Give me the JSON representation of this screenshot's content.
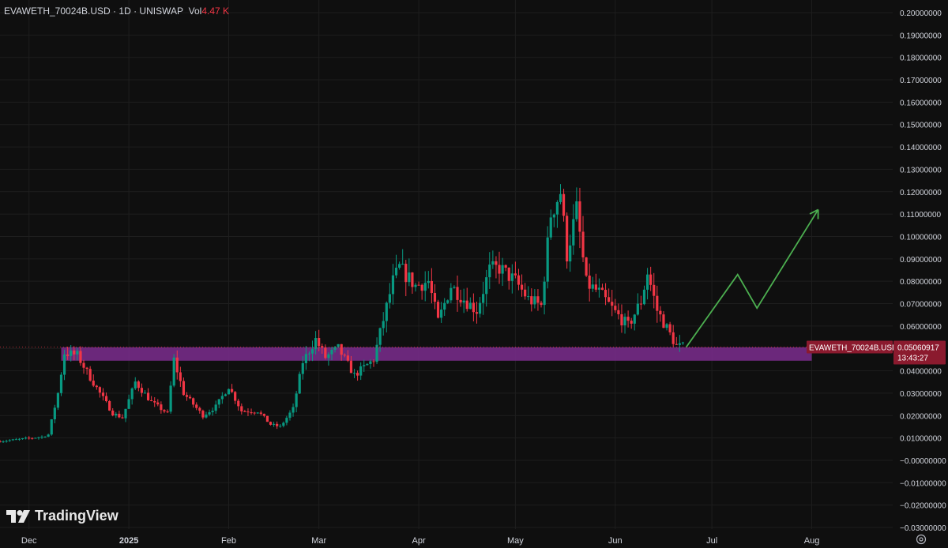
{
  "header": {
    "symbol": "EVAWETH_70024B.USD",
    "sep1": " · ",
    "interval": "1D",
    "sep2": " · ",
    "exchange": "UNISWAP",
    "vol_label": "Vol",
    "vol_value": "4.47 K"
  },
  "branding": {
    "name": "TradingView",
    "icon": "tradingview-logo-icon"
  },
  "settings_icon": "gear-icon",
  "price_tag": {
    "symbol": "EVAWETH_70024B.USD",
    "price": "0.05060917",
    "countdown": "13:43:27",
    "color": "#8b1a2e"
  },
  "colors": {
    "background": "#0f0f0f",
    "grid": "#1e1e1e",
    "up": "#089981",
    "down": "#f23645",
    "zone": "#7b2d8e",
    "projection": "#4caf50"
  },
  "chart_data": {
    "type": "candlestick",
    "title": "EVAWETH_70024B.USD · 1D · UNISWAP",
    "x_ticks": [
      "Dec",
      "2025",
      "Feb",
      "Mar",
      "Apr",
      "May",
      "Jun",
      "Jul",
      "Aug"
    ],
    "y_ticks": [
      "0.20000000",
      "0.19000000",
      "0.18000000",
      "0.17000000",
      "0.16000000",
      "0.15000000",
      "0.14000000",
      "0.13000000",
      "0.12000000",
      "0.11000000",
      "0.10000000",
      "0.09000000",
      "0.08000000",
      "0.07000000",
      "0.06000000",
      "0.05000000",
      "0.04000000",
      "0.03000000",
      "0.02000000",
      "0.01000000",
      "−0.00000000",
      "−0.01000000",
      "−0.02000000",
      "−0.03000000"
    ],
    "ylim": [
      -0.03,
      0.2
    ],
    "x_range": [
      "2024-11-22",
      "2025-08-20"
    ],
    "grid": true,
    "last_price": 0.05060917,
    "support_zone": {
      "from_date": "2024-12-11",
      "to_date": "2025-08-01",
      "low": 0.0445,
      "high": 0.0505
    },
    "projection_path": [
      {
        "date": "2025-06-23",
        "y": 0.0505
      },
      {
        "date": "2025-07-09",
        "y": 0.083
      },
      {
        "date": "2025-07-15",
        "y": 0.068
      },
      {
        "date": "2025-08-03",
        "y": 0.112
      }
    ],
    "anchors": [
      [
        "2024-11-22",
        0.0085
      ],
      [
        "2024-12-05",
        0.0105
      ],
      [
        "2024-12-07",
        0.0115
      ],
      [
        "2024-12-10",
        0.03
      ],
      [
        "2024-12-12",
        0.048
      ],
      [
        "2024-12-16",
        0.047
      ],
      [
        "2024-12-20",
        0.037
      ],
      [
        "2024-12-23",
        0.03
      ],
      [
        "2024-12-27",
        0.021
      ],
      [
        "2024-12-30",
        0.019
      ],
      [
        "2025-01-03",
        0.035
      ],
      [
        "2025-01-08",
        0.026
      ],
      [
        "2025-01-13",
        0.021
      ],
      [
        "2025-01-15",
        0.045
      ],
      [
        "2025-01-18",
        0.03
      ],
      [
        "2025-01-24",
        0.02
      ],
      [
        "2025-01-28",
        0.024
      ],
      [
        "2025-02-01",
        0.033
      ],
      [
        "2025-02-05",
        0.022
      ],
      [
        "2025-02-10",
        0.022
      ],
      [
        "2025-02-14",
        0.016
      ],
      [
        "2025-02-17",
        0.015
      ],
      [
        "2025-02-21",
        0.023
      ],
      [
        "2025-02-24",
        0.044
      ],
      [
        "2025-02-28",
        0.054
      ],
      [
        "2025-03-03",
        0.046
      ],
      [
        "2025-03-07",
        0.05
      ],
      [
        "2025-03-12",
        0.038
      ],
      [
        "2025-03-18",
        0.045
      ],
      [
        "2025-03-20",
        0.057
      ],
      [
        "2025-03-24",
        0.08
      ],
      [
        "2025-03-26",
        0.086
      ],
      [
        "2025-03-31",
        0.078
      ],
      [
        "2025-04-04",
        0.08
      ],
      [
        "2025-04-07",
        0.062
      ],
      [
        "2025-04-11",
        0.078
      ],
      [
        "2025-04-15",
        0.072
      ],
      [
        "2025-04-19",
        0.067
      ],
      [
        "2025-04-23",
        0.085
      ],
      [
        "2025-04-26",
        0.086
      ],
      [
        "2025-05-01",
        0.08
      ],
      [
        "2025-05-05",
        0.072
      ],
      [
        "2025-05-09",
        0.069
      ],
      [
        "2025-05-12",
        0.11
      ],
      [
        "2025-05-15",
        0.12
      ],
      [
        "2025-05-17",
        0.092
      ],
      [
        "2025-05-20",
        0.112
      ],
      [
        "2025-05-23",
        0.079
      ],
      [
        "2025-05-27",
        0.075
      ],
      [
        "2025-06-01",
        0.066
      ],
      [
        "2025-06-05",
        0.06
      ],
      [
        "2025-06-09",
        0.071
      ],
      [
        "2025-06-11",
        0.084
      ],
      [
        "2025-06-14",
        0.067
      ],
      [
        "2025-06-17",
        0.059
      ],
      [
        "2025-06-20",
        0.051
      ],
      [
        "2025-06-22",
        0.0506
      ]
    ]
  }
}
